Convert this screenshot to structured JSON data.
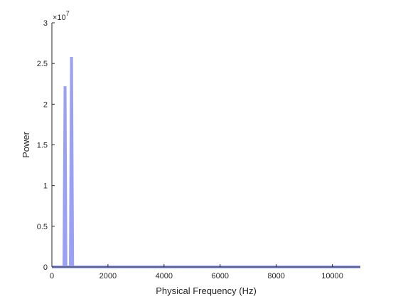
{
  "chart_data": {
    "type": "line",
    "xlabel": "Physical Frequency (Hz)",
    "ylabel": "Power",
    "xlim": [
      0,
      11000
    ],
    "ylim": [
      0,
      3
    ],
    "x_ticks": [
      0,
      2000,
      4000,
      6000,
      8000,
      10000
    ],
    "x_tick_labels": [
      "0",
      "2000",
      "4000",
      "6000",
      "8000",
      "10000"
    ],
    "y_ticks": [
      0,
      0.5,
      1,
      1.5,
      2,
      2.5,
      3
    ],
    "y_tick_labels": [
      "0",
      "0.5",
      "1",
      "1.5",
      "2",
      "2.5",
      "3"
    ],
    "y_multiplier": {
      "base": "×10",
      "exponent": "7",
      "value": 10000000
    },
    "series": [
      {
        "color": "#9aa0f5",
        "x": [
          0,
          430,
          470,
          500,
          660,
          700,
          740,
          11000
        ],
        "y": [
          0,
          0,
          2.22,
          0,
          0,
          2.58,
          0,
          0
        ]
      }
    ],
    "grid": false,
    "legend": "none"
  }
}
